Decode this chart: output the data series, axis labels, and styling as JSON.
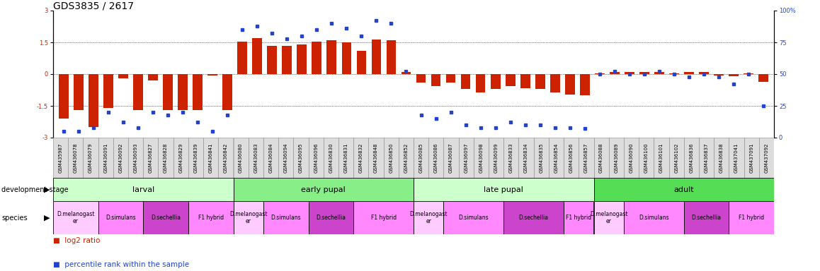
{
  "title": "GDS3835 / 2617",
  "sample_ids": [
    "GSM435987",
    "GSM436078",
    "GSM436079",
    "GSM436091",
    "GSM436092",
    "GSM436093",
    "GSM436827",
    "GSM436828",
    "GSM436829",
    "GSM436839",
    "GSM436841",
    "GSM436842",
    "GSM436080",
    "GSM436083",
    "GSM436084",
    "GSM436094",
    "GSM436095",
    "GSM436096",
    "GSM436830",
    "GSM436831",
    "GSM436832",
    "GSM436848",
    "GSM436850",
    "GSM436852",
    "GSM436085",
    "GSM436086",
    "GSM436087",
    "GSM436097",
    "GSM436098",
    "GSM436099",
    "GSM436833",
    "GSM436834",
    "GSM436835",
    "GSM436854",
    "GSM436856",
    "GSM436857",
    "GSM436088",
    "GSM436089",
    "GSM436090",
    "GSM436100",
    "GSM436101",
    "GSM436102",
    "GSM436836",
    "GSM436837",
    "GSM436838",
    "GSM437041",
    "GSM437091",
    "GSM437092"
  ],
  "log2_ratio": [
    -2.1,
    -1.7,
    -2.5,
    -1.6,
    -0.2,
    -1.7,
    -0.3,
    -1.7,
    -1.7,
    -1.7,
    -0.05,
    -1.7,
    1.55,
    1.7,
    1.35,
    1.35,
    1.4,
    1.55,
    1.6,
    1.5,
    1.1,
    1.65,
    1.6,
    0.1,
    -0.4,
    -0.55,
    -0.4,
    -0.7,
    -0.85,
    -0.7,
    -0.55,
    -0.65,
    -0.7,
    -0.85,
    -0.95,
    -1.0,
    0.05,
    0.1,
    0.1,
    0.1,
    0.1,
    0.05,
    0.1,
    0.1,
    -0.05,
    -0.1,
    0.05,
    -0.35
  ],
  "percentile": [
    5,
    5,
    8,
    20,
    12,
    8,
    20,
    18,
    20,
    12,
    5,
    18,
    85,
    88,
    82,
    78,
    80,
    85,
    90,
    86,
    80,
    92,
    90,
    52,
    18,
    15,
    20,
    10,
    8,
    8,
    12,
    10,
    10,
    8,
    8,
    7,
    50,
    52,
    50,
    50,
    52,
    50,
    48,
    50,
    48,
    42,
    50,
    25
  ],
  "development_stages": [
    {
      "label": "larval",
      "start": 0,
      "end": 12,
      "color": "#ccffcc"
    },
    {
      "label": "early pupal",
      "start": 12,
      "end": 24,
      "color": "#88ee88"
    },
    {
      "label": "late pupal",
      "start": 24,
      "end": 36,
      "color": "#ccffcc"
    },
    {
      "label": "adult",
      "start": 36,
      "end": 48,
      "color": "#55dd55"
    }
  ],
  "species_groups": [
    {
      "label": "D.melanogast\ner",
      "start": 0,
      "end": 3,
      "color": "#ffccff"
    },
    {
      "label": "D.simulans",
      "start": 3,
      "end": 6,
      "color": "#ff88ff"
    },
    {
      "label": "D.sechellia",
      "start": 6,
      "end": 9,
      "color": "#cc44cc"
    },
    {
      "label": "F1 hybrid",
      "start": 9,
      "end": 12,
      "color": "#ff88ff"
    },
    {
      "label": "D.melanogast\ner",
      "start": 12,
      "end": 14,
      "color": "#ffccff"
    },
    {
      "label": "D.simulans",
      "start": 14,
      "end": 17,
      "color": "#ff88ff"
    },
    {
      "label": "D.sechellia",
      "start": 17,
      "end": 20,
      "color": "#cc44cc"
    },
    {
      "label": "F1 hybrid",
      "start": 20,
      "end": 24,
      "color": "#ff88ff"
    },
    {
      "label": "D.melanogast\ner",
      "start": 24,
      "end": 26,
      "color": "#ffccff"
    },
    {
      "label": "D.simulans",
      "start": 26,
      "end": 30,
      "color": "#ff88ff"
    },
    {
      "label": "D.sechellia",
      "start": 30,
      "end": 34,
      "color": "#cc44cc"
    },
    {
      "label": "F1 hybrid",
      "start": 34,
      "end": 36,
      "color": "#ff88ff"
    },
    {
      "label": "D.melanogast\ner",
      "start": 36,
      "end": 38,
      "color": "#ffccff"
    },
    {
      "label": "D.simulans",
      "start": 38,
      "end": 42,
      "color": "#ff88ff"
    },
    {
      "label": "D.sechellia",
      "start": 42,
      "end": 45,
      "color": "#cc44cc"
    },
    {
      "label": "F1 hybrid",
      "start": 45,
      "end": 48,
      "color": "#ff88ff"
    }
  ],
  "ylim_left": [
    -3,
    3
  ],
  "ylim_right": [
    0,
    100
  ],
  "yticks_left": [
    -3,
    -1.5,
    0,
    1.5,
    3
  ],
  "yticks_right": [
    0,
    25,
    50,
    75,
    100
  ],
  "bar_color": "#cc2200",
  "dot_color": "#2244cc",
  "bg_color": "#ffffff",
  "title_fontsize": 10,
  "tick_fontsize": 6,
  "label_fontsize": 8,
  "sample_fontsize": 5,
  "legend_fontsize": 7.5
}
